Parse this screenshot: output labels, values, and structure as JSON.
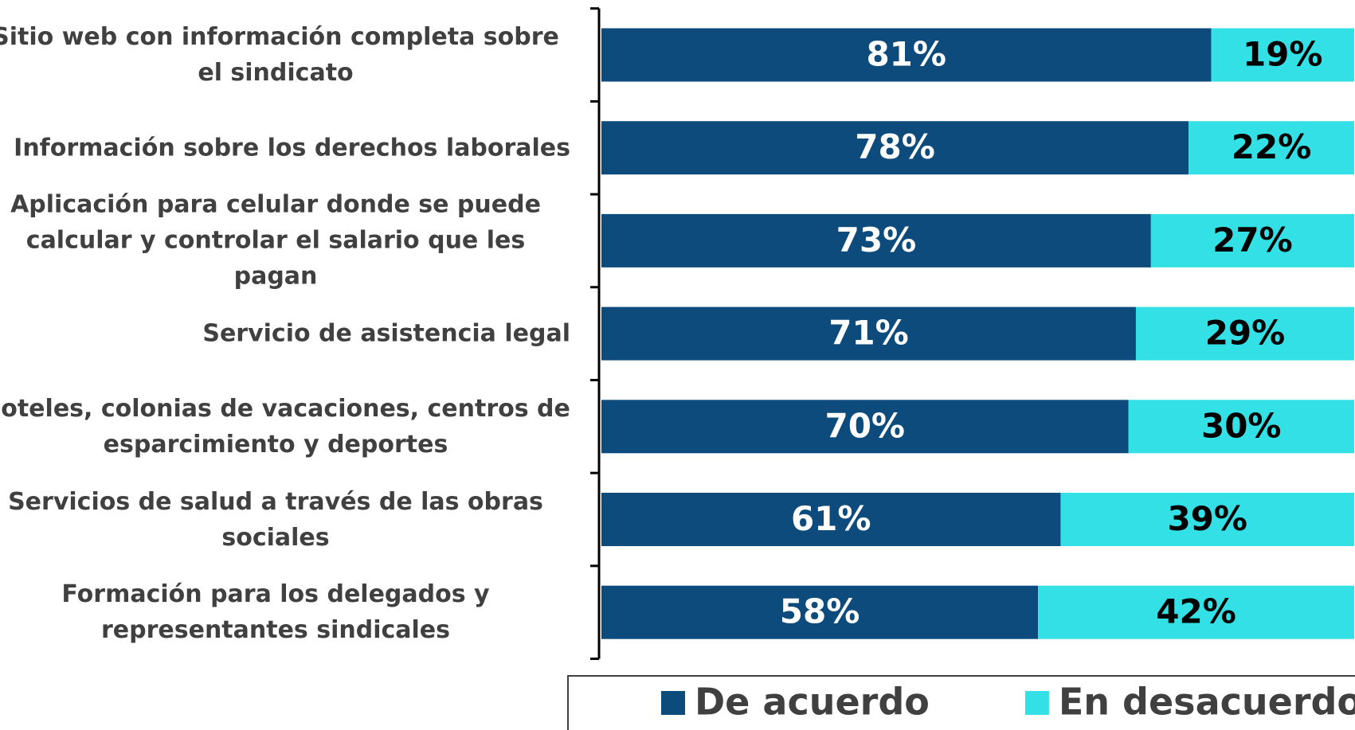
{
  "chart_data": {
    "type": "stacked-bar-horizontal",
    "categories": [
      "Sitio web con información completa sobre\nel sindicato",
      "Información sobre los derechos laborales",
      "Aplicación para celular donde se puede\ncalcular y controlar el salario que les pagan",
      "Servicio de asistencia legal",
      "Hoteles, colonias de vacaciones, centros de\nesparcimiento y deportes",
      "Servicios de salud a través de las obras\nsociales",
      "Formación para los delegados y\nrepresentantes sindicales"
    ],
    "series": [
      {
        "name": "De acuerdo",
        "color": "#0d4b7c",
        "label_color": "#ffffff",
        "values": [
          81,
          78,
          73,
          71,
          70,
          61,
          58
        ],
        "value_labels": [
          "81%",
          "78%",
          "73%",
          "71%",
          "70%",
          "61%",
          "58%"
        ]
      },
      {
        "name": "En desacuerdo",
        "color": "#33e0e6",
        "label_color": "#000000",
        "values": [
          19,
          22,
          27,
          29,
          30,
          39,
          42
        ],
        "value_labels": [
          "19%",
          "22%",
          "27%",
          "29%",
          "30%",
          "39%",
          "42%"
        ]
      }
    ],
    "xlim": [
      0,
      100
    ],
    "legend": "bottom"
  }
}
